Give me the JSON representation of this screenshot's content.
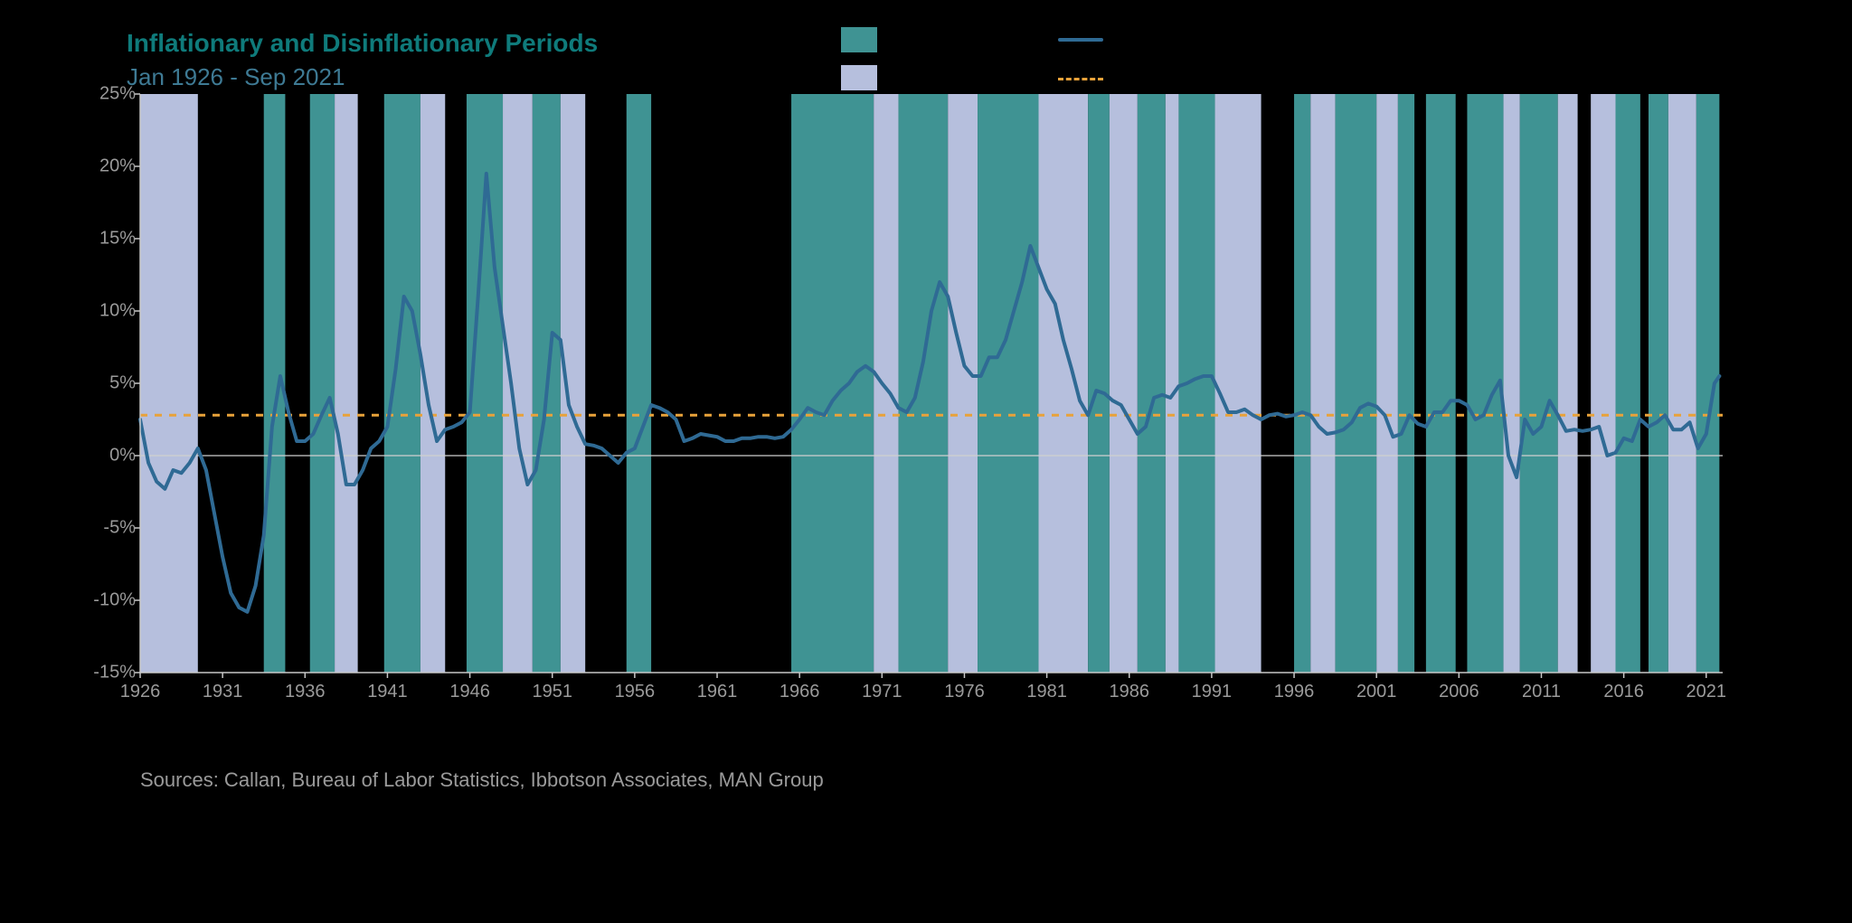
{
  "title": "Inflationary and Disinflationary Periods",
  "subtitle": "Jan 1926 - Sep 2021",
  "sources": "Sources: Callan, Bureau of Labor Statistics, Ibbotson Associates, MAN Group",
  "colors": {
    "page_bg": "#000000",
    "title": "#0f7b7b",
    "subtitle": "#3e7a94",
    "axis_text": "#9a9a9a",
    "sources_text": "#9a9a9a",
    "inflationary": "#3f9393",
    "disinflationary": "#b6bfdd",
    "cpi_line": "#2f6a94",
    "median_line": "#e8a23a",
    "axis_line": "#c8c8c8",
    "zero_line": "#d0d0d0"
  },
  "typography": {
    "title_size": 28,
    "subtitle_size": 26,
    "axis_label_size": 20,
    "sources_size": 22
  },
  "chart": {
    "type": "line_with_bands",
    "x_start": 1926,
    "x_end": 2022,
    "ylim": [
      -15,
      25
    ],
    "yticks": [
      -15,
      -10,
      -5,
      0,
      5,
      10,
      15,
      20,
      25
    ],
    "ytick_labels": [
      "-15%",
      "-10%",
      "-5%",
      "0%",
      "5%",
      "10%",
      "15%",
      "20%",
      "25%"
    ],
    "xticks": [
      1926,
      1931,
      1936,
      1941,
      1946,
      1951,
      1956,
      1961,
      1966,
      1971,
      1976,
      1981,
      1986,
      1991,
      1996,
      2001,
      2006,
      2011,
      2016,
      2021
    ],
    "median_cpi": 2.8,
    "line_width": 4,
    "median_dash": "8,8",
    "bands": [
      {
        "start": 1926.0,
        "end": 1929.5,
        "type": "disinflationary"
      },
      {
        "start": 1933.5,
        "end": 1934.8,
        "type": "inflationary"
      },
      {
        "start": 1936.3,
        "end": 1937.8,
        "type": "inflationary"
      },
      {
        "start": 1937.8,
        "end": 1939.2,
        "type": "disinflationary"
      },
      {
        "start": 1940.8,
        "end": 1943.0,
        "type": "inflationary"
      },
      {
        "start": 1943.0,
        "end": 1944.5,
        "type": "disinflationary"
      },
      {
        "start": 1945.8,
        "end": 1948.0,
        "type": "inflationary"
      },
      {
        "start": 1948.0,
        "end": 1949.8,
        "type": "disinflationary"
      },
      {
        "start": 1949.8,
        "end": 1951.5,
        "type": "inflationary"
      },
      {
        "start": 1951.5,
        "end": 1953.0,
        "type": "disinflationary"
      },
      {
        "start": 1955.5,
        "end": 1957.0,
        "type": "inflationary"
      },
      {
        "start": 1965.5,
        "end": 1970.5,
        "type": "inflationary"
      },
      {
        "start": 1970.5,
        "end": 1972.0,
        "type": "disinflationary"
      },
      {
        "start": 1972.0,
        "end": 1975.0,
        "type": "inflationary"
      },
      {
        "start": 1975.0,
        "end": 1976.8,
        "type": "disinflationary"
      },
      {
        "start": 1976.8,
        "end": 1980.5,
        "type": "inflationary"
      },
      {
        "start": 1980.5,
        "end": 1983.5,
        "type": "disinflationary"
      },
      {
        "start": 1983.5,
        "end": 1984.8,
        "type": "inflationary"
      },
      {
        "start": 1984.8,
        "end": 1986.5,
        "type": "disinflationary"
      },
      {
        "start": 1986.5,
        "end": 1988.2,
        "type": "inflationary"
      },
      {
        "start": 1988.2,
        "end": 1989.0,
        "type": "disinflationary"
      },
      {
        "start": 1989.0,
        "end": 1991.2,
        "type": "inflationary"
      },
      {
        "start": 1991.2,
        "end": 1994.0,
        "type": "disinflationary"
      },
      {
        "start": 1996.0,
        "end": 1997.0,
        "type": "inflationary"
      },
      {
        "start": 1997.0,
        "end": 1998.5,
        "type": "disinflationary"
      },
      {
        "start": 1998.5,
        "end": 2001.0,
        "type": "inflationary"
      },
      {
        "start": 2001.0,
        "end": 2002.3,
        "type": "disinflationary"
      },
      {
        "start": 2002.3,
        "end": 2003.3,
        "type": "inflationary"
      },
      {
        "start": 2004.0,
        "end": 2005.8,
        "type": "inflationary"
      },
      {
        "start": 2006.5,
        "end": 2008.7,
        "type": "inflationary"
      },
      {
        "start": 2008.7,
        "end": 2009.7,
        "type": "disinflationary"
      },
      {
        "start": 2009.7,
        "end": 2012.0,
        "type": "inflationary"
      },
      {
        "start": 2012.0,
        "end": 2013.2,
        "type": "disinflationary"
      },
      {
        "start": 2014.0,
        "end": 2015.5,
        "type": "disinflationary"
      },
      {
        "start": 2015.5,
        "end": 2017.0,
        "type": "inflationary"
      },
      {
        "start": 2017.5,
        "end": 2018.7,
        "type": "inflationary"
      },
      {
        "start": 2018.7,
        "end": 2020.4,
        "type": "disinflationary"
      },
      {
        "start": 2020.4,
        "end": 2021.8,
        "type": "inflationary"
      }
    ],
    "cpi": [
      [
        1926.0,
        2.5
      ],
      [
        1926.5,
        -0.5
      ],
      [
        1927.0,
        -1.8
      ],
      [
        1927.5,
        -2.3
      ],
      [
        1928.0,
        -1.0
      ],
      [
        1928.5,
        -1.2
      ],
      [
        1929.0,
        -0.5
      ],
      [
        1929.5,
        0.5
      ],
      [
        1930.0,
        -1.0
      ],
      [
        1930.5,
        -4.0
      ],
      [
        1931.0,
        -7.0
      ],
      [
        1931.5,
        -9.5
      ],
      [
        1932.0,
        -10.5
      ],
      [
        1932.5,
        -10.8
      ],
      [
        1933.0,
        -9.0
      ],
      [
        1933.5,
        -5.5
      ],
      [
        1934.0,
        2.0
      ],
      [
        1934.5,
        5.5
      ],
      [
        1935.0,
        3.0
      ],
      [
        1935.5,
        1.0
      ],
      [
        1936.0,
        1.0
      ],
      [
        1936.5,
        1.5
      ],
      [
        1937.0,
        2.8
      ],
      [
        1937.5,
        4.0
      ],
      [
        1938.0,
        1.5
      ],
      [
        1938.5,
        -2.0
      ],
      [
        1939.0,
        -2.0
      ],
      [
        1939.5,
        -1.0
      ],
      [
        1940.0,
        0.5
      ],
      [
        1940.5,
        1.0
      ],
      [
        1941.0,
        2.0
      ],
      [
        1941.5,
        6.0
      ],
      [
        1942.0,
        11.0
      ],
      [
        1942.5,
        10.0
      ],
      [
        1943.0,
        7.0
      ],
      [
        1943.5,
        3.5
      ],
      [
        1944.0,
        1.0
      ],
      [
        1944.5,
        1.8
      ],
      [
        1945.0,
        2.0
      ],
      [
        1945.5,
        2.3
      ],
      [
        1946.0,
        3.0
      ],
      [
        1946.5,
        11.0
      ],
      [
        1947.0,
        19.5
      ],
      [
        1947.5,
        13.0
      ],
      [
        1948.0,
        9.0
      ],
      [
        1948.5,
        5.0
      ],
      [
        1949.0,
        0.5
      ],
      [
        1949.5,
        -2.0
      ],
      [
        1950.0,
        -1.0
      ],
      [
        1950.5,
        2.5
      ],
      [
        1951.0,
        8.5
      ],
      [
        1951.5,
        8.0
      ],
      [
        1952.0,
        3.5
      ],
      [
        1952.5,
        2.0
      ],
      [
        1953.0,
        0.8
      ],
      [
        1953.5,
        0.7
      ],
      [
        1954.0,
        0.5
      ],
      [
        1954.5,
        0.0
      ],
      [
        1955.0,
        -0.5
      ],
      [
        1955.5,
        0.2
      ],
      [
        1956.0,
        0.5
      ],
      [
        1956.5,
        2.0
      ],
      [
        1957.0,
        3.5
      ],
      [
        1957.5,
        3.3
      ],
      [
        1958.0,
        3.0
      ],
      [
        1958.5,
        2.5
      ],
      [
        1959.0,
        1.0
      ],
      [
        1959.5,
        1.2
      ],
      [
        1960.0,
        1.5
      ],
      [
        1960.5,
        1.4
      ],
      [
        1961.0,
        1.3
      ],
      [
        1961.5,
        1.0
      ],
      [
        1962.0,
        1.0
      ],
      [
        1962.5,
        1.2
      ],
      [
        1963.0,
        1.2
      ],
      [
        1963.5,
        1.3
      ],
      [
        1964.0,
        1.3
      ],
      [
        1964.5,
        1.2
      ],
      [
        1965.0,
        1.3
      ],
      [
        1965.5,
        1.8
      ],
      [
        1966.0,
        2.5
      ],
      [
        1966.5,
        3.3
      ],
      [
        1967.0,
        3.0
      ],
      [
        1967.5,
        2.8
      ],
      [
        1968.0,
        3.8
      ],
      [
        1968.5,
        4.5
      ],
      [
        1969.0,
        5.0
      ],
      [
        1969.5,
        5.8
      ],
      [
        1970.0,
        6.2
      ],
      [
        1970.5,
        5.8
      ],
      [
        1971.0,
        5.0
      ],
      [
        1971.5,
        4.3
      ],
      [
        1972.0,
        3.3
      ],
      [
        1972.5,
        3.0
      ],
      [
        1973.0,
        4.0
      ],
      [
        1973.5,
        6.5
      ],
      [
        1974.0,
        10.0
      ],
      [
        1974.5,
        12.0
      ],
      [
        1975.0,
        11.0
      ],
      [
        1975.5,
        8.5
      ],
      [
        1976.0,
        6.2
      ],
      [
        1976.5,
        5.5
      ],
      [
        1977.0,
        5.5
      ],
      [
        1977.5,
        6.8
      ],
      [
        1978.0,
        6.8
      ],
      [
        1978.5,
        8.0
      ],
      [
        1979.0,
        10.0
      ],
      [
        1979.5,
        12.0
      ],
      [
        1980.0,
        14.5
      ],
      [
        1980.5,
        13.0
      ],
      [
        1981.0,
        11.5
      ],
      [
        1981.5,
        10.5
      ],
      [
        1982.0,
        8.0
      ],
      [
        1982.5,
        6.0
      ],
      [
        1983.0,
        3.8
      ],
      [
        1983.5,
        2.8
      ],
      [
        1984.0,
        4.5
      ],
      [
        1984.5,
        4.3
      ],
      [
        1985.0,
        3.8
      ],
      [
        1985.5,
        3.5
      ],
      [
        1986.0,
        2.5
      ],
      [
        1986.5,
        1.5
      ],
      [
        1987.0,
        2.0
      ],
      [
        1987.5,
        4.0
      ],
      [
        1988.0,
        4.2
      ],
      [
        1988.5,
        4.0
      ],
      [
        1989.0,
        4.8
      ],
      [
        1989.5,
        5.0
      ],
      [
        1990.0,
        5.3
      ],
      [
        1990.5,
        5.5
      ],
      [
        1991.0,
        5.5
      ],
      [
        1991.5,
        4.3
      ],
      [
        1992.0,
        3.0
      ],
      [
        1992.5,
        3.0
      ],
      [
        1993.0,
        3.2
      ],
      [
        1993.5,
        2.8
      ],
      [
        1994.0,
        2.5
      ],
      [
        1994.5,
        2.8
      ],
      [
        1995.0,
        2.9
      ],
      [
        1995.5,
        2.7
      ],
      [
        1996.0,
        2.8
      ],
      [
        1996.5,
        3.0
      ],
      [
        1997.0,
        2.8
      ],
      [
        1997.5,
        2.0
      ],
      [
        1998.0,
        1.5
      ],
      [
        1998.5,
        1.6
      ],
      [
        1999.0,
        1.8
      ],
      [
        1999.5,
        2.3
      ],
      [
        2000.0,
        3.3
      ],
      [
        2000.5,
        3.6
      ],
      [
        2001.0,
        3.4
      ],
      [
        2001.5,
        2.8
      ],
      [
        2002.0,
        1.3
      ],
      [
        2002.5,
        1.5
      ],
      [
        2003.0,
        2.8
      ],
      [
        2003.5,
        2.2
      ],
      [
        2004.0,
        2.0
      ],
      [
        2004.5,
        3.0
      ],
      [
        2005.0,
        3.0
      ],
      [
        2005.5,
        3.8
      ],
      [
        2006.0,
        3.8
      ],
      [
        2006.5,
        3.5
      ],
      [
        2007.0,
        2.5
      ],
      [
        2007.5,
        2.8
      ],
      [
        2008.0,
        4.2
      ],
      [
        2008.5,
        5.2
      ],
      [
        2009.0,
        0.0
      ],
      [
        2009.5,
        -1.5
      ],
      [
        2010.0,
        2.5
      ],
      [
        2010.5,
        1.5
      ],
      [
        2011.0,
        2.0
      ],
      [
        2011.5,
        3.8
      ],
      [
        2012.0,
        2.8
      ],
      [
        2012.5,
        1.7
      ],
      [
        2013.0,
        1.8
      ],
      [
        2013.5,
        1.7
      ],
      [
        2014.0,
        1.8
      ],
      [
        2014.5,
        2.0
      ],
      [
        2015.0,
        0.0
      ],
      [
        2015.5,
        0.2
      ],
      [
        2016.0,
        1.2
      ],
      [
        2016.5,
        1.0
      ],
      [
        2017.0,
        2.5
      ],
      [
        2017.5,
        2.0
      ],
      [
        2018.0,
        2.3
      ],
      [
        2018.5,
        2.8
      ],
      [
        2019.0,
        1.8
      ],
      [
        2019.5,
        1.8
      ],
      [
        2020.0,
        2.3
      ],
      [
        2020.5,
        0.5
      ],
      [
        2021.0,
        1.5
      ],
      [
        2021.5,
        5.0
      ],
      [
        2021.8,
        5.5
      ]
    ]
  }
}
